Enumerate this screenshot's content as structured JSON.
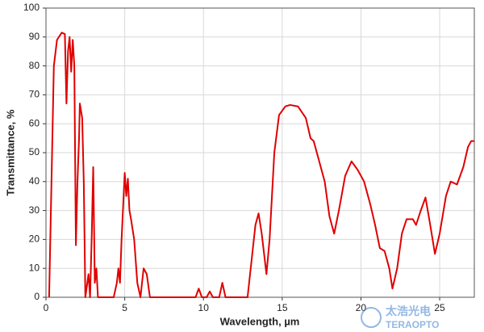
{
  "chart_data": {
    "type": "line",
    "x_label": "Wavelength, µm",
    "y_label": "Transmittance, %",
    "color": "#e00000",
    "grid": true,
    "xlim": [
      0,
      27.2
    ],
    "ylim": [
      0,
      100
    ],
    "xticks": [
      0,
      5,
      10,
      15,
      20,
      25
    ],
    "yticks": [
      0,
      10,
      20,
      30,
      40,
      50,
      60,
      70,
      80,
      90,
      100
    ],
    "x": [
      0.2,
      0.35,
      0.5,
      0.7,
      1.0,
      1.2,
      1.3,
      1.4,
      1.5,
      1.6,
      1.7,
      1.8,
      1.9,
      2.0,
      2.1,
      2.15,
      2.3,
      2.4,
      2.5,
      2.7,
      2.8,
      2.9,
      3.0,
      3.1,
      3.2,
      3.3,
      3.6,
      4.3,
      4.5,
      4.6,
      4.7,
      4.8,
      5.0,
      5.1,
      5.2,
      5.3,
      5.4,
      5.6,
      5.8,
      6.0,
      6.2,
      6.4,
      6.6,
      9.5,
      9.7,
      9.9,
      10.2,
      10.4,
      10.6,
      11.0,
      11.2,
      11.4,
      12.8,
      13.1,
      13.3,
      13.5,
      13.7,
      14.0,
      14.2,
      14.5,
      14.8,
      15.2,
      15.5,
      16.0,
      16.5,
      16.8,
      17.0,
      17.3,
      17.7,
      18.0,
      18.3,
      18.6,
      19.0,
      19.4,
      19.8,
      20.2,
      20.6,
      20.9,
      21.2,
      21.5,
      21.8,
      22.0,
      22.3,
      22.6,
      22.9,
      23.3,
      23.5,
      23.8,
      24.1,
      24.4,
      24.7,
      25.0,
      25.4,
      25.7,
      26.1,
      26.5,
      26.8,
      27.0,
      27.2
    ],
    "values": [
      0,
      40,
      80,
      89,
      91.5,
      91,
      67,
      85,
      90,
      78,
      89,
      80,
      18,
      40,
      55,
      67,
      62,
      40,
      0,
      8,
      0,
      20,
      45,
      5,
      10,
      0,
      0,
      0,
      5,
      10,
      5,
      20,
      43,
      35,
      41,
      30,
      27,
      20,
      5,
      0,
      10,
      8,
      0,
      0,
      3,
      0,
      0,
      2,
      0,
      0,
      5,
      0,
      0,
      15,
      25,
      29,
      22,
      8,
      20,
      50,
      63,
      66,
      66.5,
      66,
      62,
      55,
      54,
      48,
      40,
      28,
      22,
      30,
      42,
      47,
      44,
      40,
      32,
      25,
      17,
      16,
      10,
      3,
      10,
      22,
      27,
      27,
      25,
      30,
      34.5,
      25,
      15,
      22,
      35,
      40,
      39,
      45,
      52,
      54,
      54
    ]
  },
  "watermark": {
    "name": "太浩光电",
    "brand": "TERAOPTO"
  }
}
